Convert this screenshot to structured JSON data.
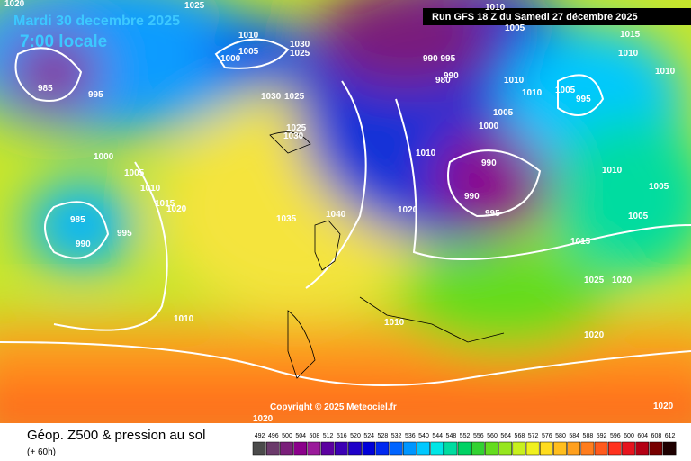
{
  "header": {
    "date": "Mardi 30 decembre 2025",
    "time": "7:00 locale",
    "run": "Run GFS 18 Z du Samedi 27 décembre 2025",
    "copyright": "Copyright © 2025 Meteociel.fr"
  },
  "legend": {
    "title": "Géop. Z500 & pression au sol",
    "lead": "(+ 60h)",
    "scale": [
      {
        "value": 492,
        "color": "#4b4b4b"
      },
      {
        "value": 496,
        "color": "#6b3a6b"
      },
      {
        "value": 500,
        "color": "#7a1f7a"
      },
      {
        "value": 504,
        "color": "#8b008b"
      },
      {
        "value": 508,
        "color": "#9a1a9a"
      },
      {
        "value": 512,
        "color": "#5c00a0"
      },
      {
        "value": 516,
        "color": "#3c00b4"
      },
      {
        "value": 520,
        "color": "#1e00c8"
      },
      {
        "value": 524,
        "color": "#0000d8"
      },
      {
        "value": 528,
        "color": "#0028f0"
      },
      {
        "value": 532,
        "color": "#0064ff"
      },
      {
        "value": 536,
        "color": "#0096ff"
      },
      {
        "value": 540,
        "color": "#00c8ff"
      },
      {
        "value": 544,
        "color": "#00e6e6"
      },
      {
        "value": 548,
        "color": "#00dca0"
      },
      {
        "value": 552,
        "color": "#00d264"
      },
      {
        "value": 556,
        "color": "#32d232"
      },
      {
        "value": 560,
        "color": "#64dc1e"
      },
      {
        "value": 564,
        "color": "#96e61e"
      },
      {
        "value": 568,
        "color": "#c8f01e"
      },
      {
        "value": 572,
        "color": "#f0f01e"
      },
      {
        "value": 576,
        "color": "#ffdc1e"
      },
      {
        "value": 580,
        "color": "#ffbe1e"
      },
      {
        "value": 584,
        "color": "#ffa01e"
      },
      {
        "value": 588,
        "color": "#ff7d1e"
      },
      {
        "value": 592,
        "color": "#ff5a1e"
      },
      {
        "value": 596,
        "color": "#ff321e"
      },
      {
        "value": 600,
        "color": "#e6141e"
      },
      {
        "value": 604,
        "color": "#b40014"
      },
      {
        "value": 608,
        "color": "#780000"
      },
      {
        "value": 612,
        "color": "#1e0000"
      }
    ]
  },
  "isobars": [
    1020,
    1025,
    1010,
    1005,
    1000,
    1030,
    1025,
    985,
    995,
    1030,
    1025,
    1025,
    1030,
    1000,
    1005,
    1010,
    1015,
    1020,
    985,
    990,
    995,
    1035,
    1040,
    1010,
    1005,
    "990 995",
    980,
    990,
    1010,
    1010,
    1005,
    995,
    1005,
    1000,
    1010,
    990,
    990,
    995,
    1020,
    1015,
    1010,
    1010,
    1010,
    1005,
    1005,
    1015,
    1025,
    1020,
    1010,
    1020,
    1020,
    1020,
    1010
  ]
}
